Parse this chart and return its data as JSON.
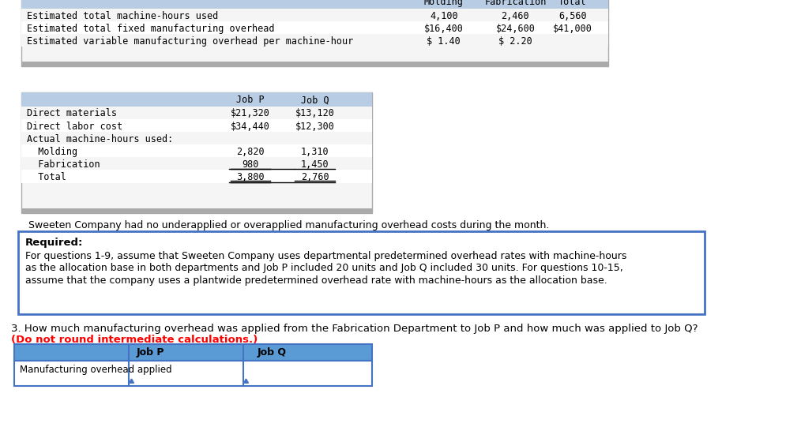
{
  "bg_color": "#ffffff",
  "border_color": "#4472c4",
  "header_fill": "#b8cce4",
  "table1": {
    "col_headers": [
      "",
      "Molding",
      "Fabrication",
      "Total"
    ],
    "rows": [
      [
        "Estimated total machine-hours used",
        "4,100",
        "2,460",
        "6,560"
      ],
      [
        "Estimated total fixed manufacturing overhead",
        "$16,400",
        "$24,600",
        "$41,000"
      ],
      [
        "Estimated variable manufacturing overhead per machine-hour",
        "$ 1.40",
        "$ 2.20",
        ""
      ]
    ]
  },
  "table2": {
    "col_headers": [
      "",
      "Job P",
      "Job Q"
    ],
    "rows": [
      [
        "Direct materials",
        "$21,320",
        "$13,120"
      ],
      [
        "Direct labor cost",
        "$34,440",
        "$12,300"
      ],
      [
        "Actual machine-hours used:",
        "",
        ""
      ],
      [
        "  Molding",
        "2,820",
        "1,310"
      ],
      [
        "  Fabrication",
        "980",
        "1,450"
      ],
      [
        "  Total",
        "3,800",
        "2,760"
      ]
    ],
    "underline_rows": [
      4,
      5
    ],
    "double_underline_rows": [
      5
    ]
  },
  "sweeten_text": "Sweeten Company had no underapplied or overapplied manufacturing overhead costs during the month.",
  "required_label": "Required:",
  "required_body": "For questions 1-9, assume that Sweeten Company uses departmental predetermined overhead rates with machine-hours\nas the allocation base in both departments and Job P included 20 units and Job Q included 30 units. For questions 10-15,\nassume that the company uses a plantwide predetermined overhead rate with machine-hours as the allocation base.",
  "question_text": "3. How much manufacturing overhead was applied from the Fabrication Department to Job P and how much was applied to Job Q?",
  "warning_text": "(Do not round intermediate calculations.)",
  "warning_color": "#ff0000",
  "table3": {
    "col_headers": [
      "",
      "Job P",
      "Job Q"
    ],
    "rows": [
      [
        "Manufacturing overhead applied",
        "",
        ""
      ]
    ]
  },
  "table3_header_fill": "#4472c4",
  "table3_row_fill": "#ffffff",
  "table3_border": "#4472c4"
}
